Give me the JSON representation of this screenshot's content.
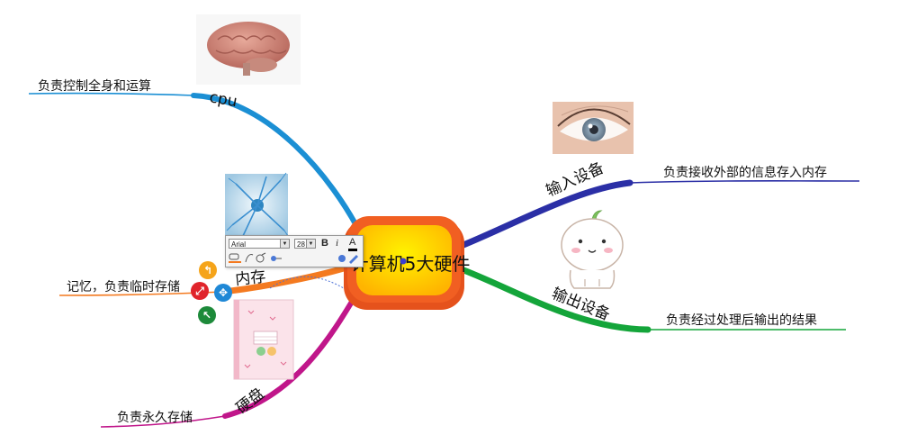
{
  "center": {
    "title": "计算机5大硬件"
  },
  "branches": [
    {
      "label": "cpu",
      "leaf": "负责控制全身和运算",
      "color": "#1b8fd4"
    },
    {
      "label": "内存",
      "leaf": "记忆，负责临时存储",
      "color": "#f47a20"
    },
    {
      "label": "硬盘",
      "leaf": "负责永久存储",
      "color": "#c0168a"
    },
    {
      "label": "输入设备",
      "leaf": "负责接收外部的信息存入内存",
      "color": "#2b2fa6"
    },
    {
      "label": "输出设备",
      "leaf": "负责经过处理后输出的结果",
      "color": "#14a53a"
    }
  ],
  "toolbar": {
    "font": "Arial",
    "size": "28",
    "bold": "B",
    "italic": "i",
    "color": "A"
  },
  "images": {
    "cpu": "brain",
    "memory": "neuron",
    "disk": "notebook",
    "input": "eye",
    "output": "cartoon-character"
  },
  "colors": {
    "center_fill": "#ffc21a",
    "center_border": "#f15f22"
  }
}
